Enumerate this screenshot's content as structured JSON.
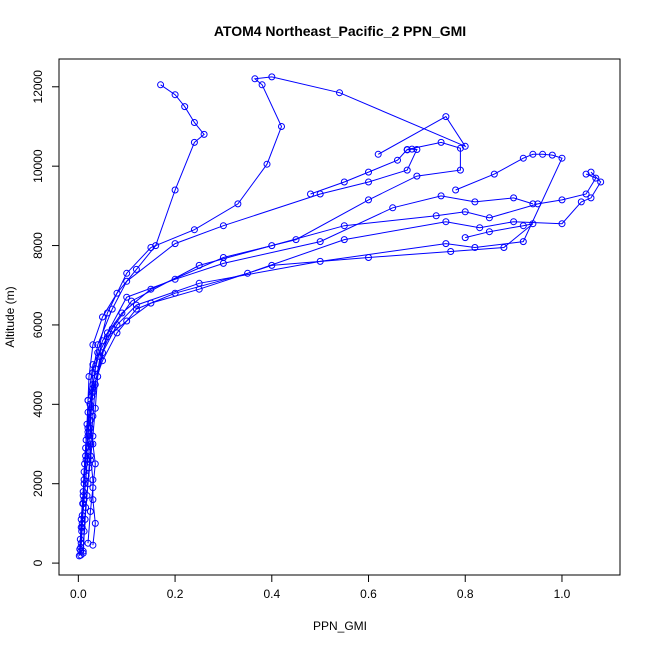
{
  "chart_data": {
    "type": "scatter",
    "title": "ATOM4 Northeast_Pacific_2 PPN_GMI",
    "xlabel": "PPN_GMI",
    "ylabel": "Altitude (m)",
    "xlim": [
      -0.04,
      1.12
    ],
    "ylim": [
      -300,
      12700
    ],
    "x_ticks": [
      0.0,
      0.2,
      0.4,
      0.6,
      0.8,
      1.0
    ],
    "x_tick_labels": [
      "0.0",
      "0.2",
      "0.4",
      "0.6",
      "0.8",
      "1.0"
    ],
    "y_ticks": [
      0,
      2000,
      4000,
      6000,
      8000,
      10000,
      12000
    ],
    "y_tick_labels": [
      "0",
      "2000",
      "4000",
      "6000",
      "8000",
      "10000",
      "12000"
    ],
    "grid": false,
    "legend": "none",
    "color": "#0000ff",
    "series": [
      {
        "values": [
          [
            0.005,
            200
          ],
          [
            0.006,
            500
          ],
          [
            0.007,
            800
          ],
          [
            0.008,
            1200
          ],
          [
            0.01,
            1700
          ],
          [
            0.012,
            2300
          ],
          [
            0.015,
            2900
          ],
          [
            0.018,
            3500
          ],
          [
            0.02,
            4100
          ],
          [
            0.022,
            4700
          ],
          [
            0.03,
            5500
          ],
          [
            0.05,
            6200
          ],
          [
            0.08,
            6800
          ],
          [
            0.12,
            7400
          ],
          [
            0.16,
            8000
          ],
          [
            0.2,
            9400
          ],
          [
            0.24,
            10600
          ],
          [
            0.26,
            10800
          ],
          [
            0.24,
            11100
          ],
          [
            0.22,
            11500
          ],
          [
            0.2,
            11800
          ],
          [
            0.17,
            12050
          ]
        ]
      },
      {
        "values": [
          [
            0.005,
            300
          ],
          [
            0.008,
            900
          ],
          [
            0.01,
            1500
          ],
          [
            0.012,
            2100
          ],
          [
            0.015,
            2700
          ],
          [
            0.02,
            3200
          ],
          [
            0.025,
            3800
          ],
          [
            0.03,
            4500
          ],
          [
            0.04,
            5300
          ],
          [
            0.06,
            6300
          ],
          [
            0.1,
            7300
          ],
          [
            0.15,
            7950
          ],
          [
            0.24,
            8400
          ],
          [
            0.33,
            9050
          ],
          [
            0.39,
            10050
          ],
          [
            0.42,
            11000
          ],
          [
            0.38,
            12050
          ],
          [
            0.365,
            12200
          ],
          [
            0.4,
            12250
          ],
          [
            0.54,
            11850
          ],
          [
            0.8,
            10500
          ],
          [
            0.76,
            11250
          ],
          [
            0.62,
            10300
          ]
        ]
      },
      {
        "values": [
          [
            0.03,
            450
          ],
          [
            0.035,
            1000
          ],
          [
            0.03,
            1600
          ],
          [
            0.03,
            2100
          ],
          [
            0.025,
            2700
          ],
          [
            0.02,
            3300
          ],
          [
            0.02,
            4100
          ],
          [
            0.03,
            5000
          ],
          [
            0.06,
            5700
          ],
          [
            0.1,
            6100
          ],
          [
            0.15,
            6550
          ],
          [
            0.25,
            6900
          ],
          [
            0.4,
            7500
          ],
          [
            0.6,
            7700
          ],
          [
            0.77,
            7850
          ],
          [
            0.88,
            7950
          ],
          [
            0.94,
            8550
          ],
          [
            0.92,
            8500
          ],
          [
            0.85,
            8350
          ],
          [
            0.8,
            8200
          ]
        ]
      },
      {
        "values": [
          [
            0.01,
            250
          ],
          [
            0.012,
            800
          ],
          [
            0.015,
            1400
          ],
          [
            0.02,
            2000
          ],
          [
            0.025,
            2600
          ],
          [
            0.03,
            3200
          ],
          [
            0.035,
            3900
          ],
          [
            0.04,
            4700
          ],
          [
            0.06,
            5800
          ],
          [
            0.1,
            6700
          ],
          [
            0.2,
            7150
          ],
          [
            0.3,
            7550
          ],
          [
            0.5,
            8100
          ],
          [
            0.65,
            8950
          ],
          [
            0.75,
            9250
          ],
          [
            0.82,
            9100
          ],
          [
            0.9,
            9200
          ],
          [
            0.94,
            9050
          ]
        ]
      },
      {
        "values": [
          [
            0.002,
            180
          ],
          [
            0.004,
            600
          ],
          [
            0.006,
            1100
          ],
          [
            0.01,
            1800
          ],
          [
            0.013,
            2500
          ],
          [
            0.016,
            3100
          ],
          [
            0.02,
            3800
          ],
          [
            0.03,
            4400
          ],
          [
            0.05,
            5100
          ],
          [
            0.08,
            5800
          ],
          [
            0.12,
            6400
          ],
          [
            0.2,
            6800
          ],
          [
            0.35,
            7300
          ],
          [
            0.55,
            8150
          ],
          [
            0.76,
            8600
          ],
          [
            0.83,
            8450
          ],
          [
            0.9,
            8600
          ],
          [
            1.0,
            8550
          ],
          [
            1.04,
            9100
          ],
          [
            1.06,
            9200
          ],
          [
            1.08,
            9600
          ],
          [
            1.06,
            9850
          ]
        ]
      },
      {
        "values": [
          [
            0.02,
            500
          ],
          [
            0.025,
            1300
          ],
          [
            0.03,
            1900
          ],
          [
            0.035,
            2500
          ],
          [
            0.03,
            3000
          ],
          [
            0.025,
            3600
          ],
          [
            0.03,
            4300
          ],
          [
            0.05,
            5300
          ],
          [
            0.08,
            6000
          ],
          [
            0.12,
            6500
          ],
          [
            0.25,
            7050
          ],
          [
            0.5,
            7600
          ],
          [
            0.76,
            8050
          ],
          [
            0.82,
            7950
          ],
          [
            0.92,
            8100
          ],
          [
            1.0,
            10200
          ],
          [
            0.98,
            10280
          ],
          [
            0.96,
            10300
          ],
          [
            0.94,
            10300
          ],
          [
            0.92,
            10200
          ],
          [
            0.86,
            9800
          ],
          [
            0.78,
            9400
          ]
        ]
      },
      {
        "values": [
          [
            0.005,
            400
          ],
          [
            0.008,
            1000
          ],
          [
            0.012,
            1600
          ],
          [
            0.016,
            2200
          ],
          [
            0.02,
            2800
          ],
          [
            0.025,
            3400
          ],
          [
            0.028,
            4200
          ],
          [
            0.035,
            4900
          ],
          [
            0.05,
            5600
          ],
          [
            0.09,
            6300
          ],
          [
            0.15,
            6900
          ],
          [
            0.3,
            7700
          ],
          [
            0.45,
            8150
          ],
          [
            0.6,
            9150
          ],
          [
            0.7,
            9750
          ],
          [
            0.79,
            9900
          ],
          [
            0.79,
            10450
          ],
          [
            0.75,
            10600
          ],
          [
            0.68,
            10420
          ],
          [
            0.66,
            10150
          ],
          [
            0.6,
            9850
          ],
          [
            0.55,
            9600
          ],
          [
            0.48,
            9300
          ]
        ]
      },
      {
        "values": [
          [
            0.003,
            350
          ],
          [
            0.006,
            900
          ],
          [
            0.009,
            1500
          ],
          [
            0.012,
            2000
          ],
          [
            0.016,
            2600
          ],
          [
            0.02,
            3400
          ],
          [
            0.024,
            4000
          ],
          [
            0.03,
            4800
          ],
          [
            0.04,
            5500
          ],
          [
            0.07,
            6400
          ],
          [
            0.1,
            7100
          ],
          [
            0.2,
            8050
          ],
          [
            0.3,
            8500
          ],
          [
            0.5,
            9300
          ],
          [
            0.6,
            9600
          ],
          [
            0.68,
            9900
          ],
          [
            0.7,
            10420
          ],
          [
            0.69,
            10430
          ],
          [
            0.68,
            10410
          ]
        ]
      },
      {
        "values": [
          [
            0.01,
            300
          ],
          [
            0.014,
            1100
          ],
          [
            0.018,
            1700
          ],
          [
            0.022,
            2400
          ],
          [
            0.026,
            3000
          ],
          [
            0.03,
            3700
          ],
          [
            0.035,
            4500
          ],
          [
            0.045,
            5200
          ],
          [
            0.07,
            5900
          ],
          [
            0.11,
            6600
          ],
          [
            0.25,
            7500
          ],
          [
            0.4,
            8000
          ],
          [
            0.55,
            8500
          ],
          [
            0.74,
            8750
          ],
          [
            0.8,
            8850
          ],
          [
            0.85,
            8700
          ],
          [
            0.95,
            9050
          ],
          [
            1.0,
            9150
          ],
          [
            1.05,
            9300
          ],
          [
            1.07,
            9700
          ],
          [
            1.05,
            9800
          ]
        ]
      }
    ]
  }
}
